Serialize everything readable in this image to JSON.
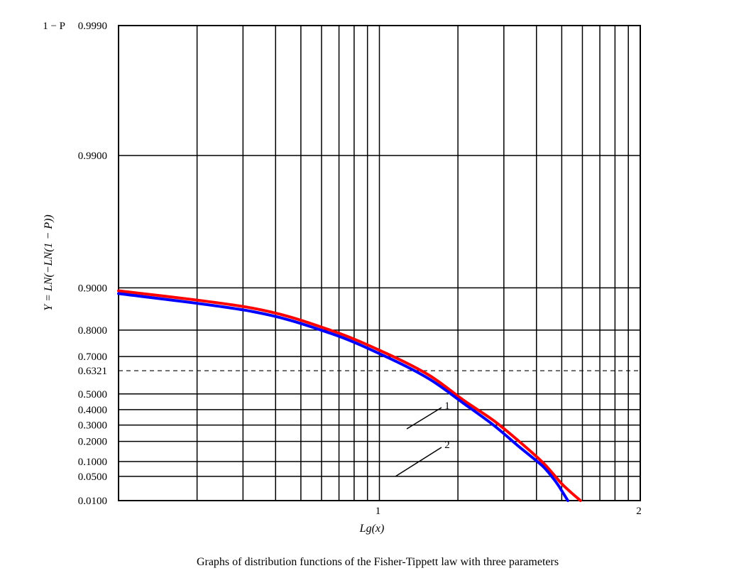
{
  "chart_data": {
    "type": "line",
    "title": "Graphs of distribution functions of the Fisher-Tippett law with three parameters",
    "xlabel": "Lg(x)",
    "ylabel": "Y = LN(−LN(1 − P))",
    "y_corner_label": "1 − P",
    "x_scale": "log",
    "y_scale": "gumbel",
    "xlim": [
      0.1,
      1.5
    ],
    "ylim_probability": [
      0.01,
      0.999
    ],
    "grid": true,
    "legend": "none (curves labeled 1 and 2 via leader lines)",
    "y_ticks": [
      "0.9990",
      "0.9900",
      "0.9000",
      "0.8000",
      "0.7000",
      "0.6321",
      "0.5000",
      "0.4000",
      "0.3000",
      "0.2000",
      "0.1000",
      "0.0500",
      "0.0100"
    ],
    "reference_line": {
      "y": 0.6321,
      "style": "dashed"
    },
    "x_ticks": [
      "1",
      "2"
    ],
    "x_tick_values": [
      1,
      2
    ],
    "x_minor_ticks": [
      0.2,
      0.3,
      0.4,
      0.5,
      0.6,
      0.7,
      0.8,
      0.9,
      2,
      3,
      4,
      5,
      6,
      7,
      8,
      9
    ],
    "series": [
      {
        "name": "1",
        "color": "#ff0000",
        "x": [
          0.1,
          0.2,
          0.3,
          0.4,
          0.5,
          0.6,
          0.7,
          0.8,
          0.9,
          0.95,
          1.0,
          1.05,
          1.1
        ],
        "y": [
          0.895,
          0.86,
          0.8,
          0.715,
          0.61,
          0.46,
          0.33,
          0.2,
          0.1,
          0.06,
          0.032,
          0.018,
          0.01
        ]
      },
      {
        "name": "2",
        "color": "#0000ff",
        "x": [
          0.1,
          0.2,
          0.3,
          0.4,
          0.5,
          0.6,
          0.7,
          0.8,
          0.9,
          0.95,
          0.98,
          1.0,
          1.03
        ],
        "y": [
          0.89,
          0.852,
          0.79,
          0.7,
          0.59,
          0.44,
          0.3,
          0.17,
          0.085,
          0.048,
          0.03,
          0.02,
          0.01
        ]
      }
    ]
  }
}
